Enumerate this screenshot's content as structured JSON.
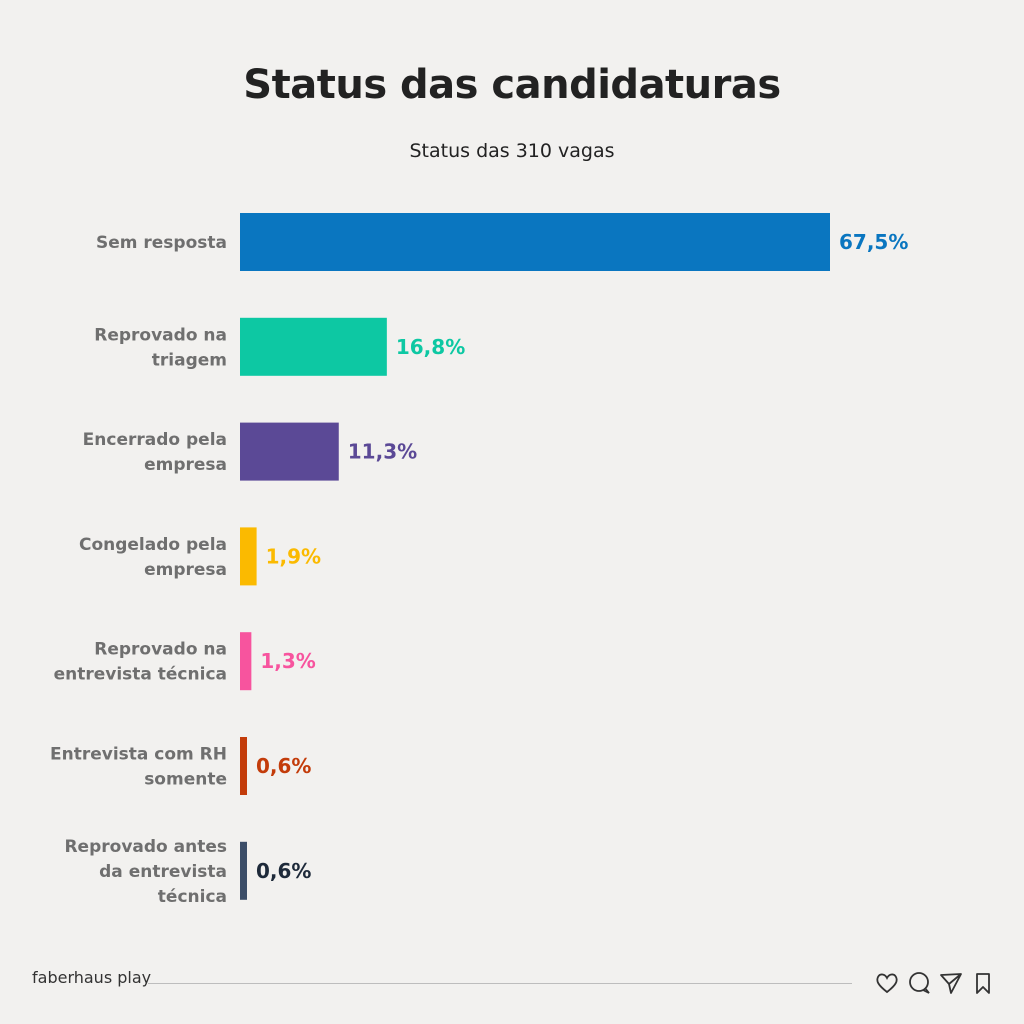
{
  "header": {
    "title": "Status das candidaturas",
    "subtitle": "Status das 310 vagas"
  },
  "footer": {
    "brand": "faberhaus play",
    "icons": [
      "heart-icon",
      "comment-icon",
      "send-icon",
      "bookmark-icon"
    ]
  },
  "chart_data": {
    "type": "bar",
    "orientation": "horizontal",
    "title": "Status das candidaturas",
    "subtitle": "Status das 310 vagas",
    "categories": [
      "Sem resposta",
      "Reprovado na triagem",
      "Encerrado pela empresa",
      "Congelado pela empresa",
      "Reprovado na entrevista técnica",
      "Entrevista com RH somente",
      "Reprovado antes da entrevista técnica"
    ],
    "category_lines": [
      [
        "Sem resposta"
      ],
      [
        "Reprovado na",
        "triagem"
      ],
      [
        "Encerrado pela",
        "empresa"
      ],
      [
        "Congelado pela",
        "empresa"
      ],
      [
        "Reprovado na",
        "entrevista técnica"
      ],
      [
        "Entrevista com RH",
        "somente"
      ],
      [
        "Reprovado antes",
        "da entrevista",
        "técnica"
      ]
    ],
    "values": [
      67.5,
      16.8,
      11.3,
      1.9,
      1.3,
      0.6,
      0.6
    ],
    "value_labels": [
      "67,5%",
      "16,8%",
      "11,3%",
      "1,9%",
      "1,3%",
      "0,6%",
      "0,6%"
    ],
    "colors": [
      "#0a76c0",
      "#0dc8a3",
      "#5b4996",
      "#fbba00",
      "#f7549e",
      "#c33c0a",
      "#3c4e68"
    ],
    "label_colors": [
      "#0a76c0",
      "#0dc8a3",
      "#5b4996",
      "#fbba00",
      "#f7549e",
      "#c33c0a",
      "#1e2a3a"
    ],
    "xlim": [
      0,
      67.5
    ],
    "grid": false,
    "legend": "none"
  }
}
